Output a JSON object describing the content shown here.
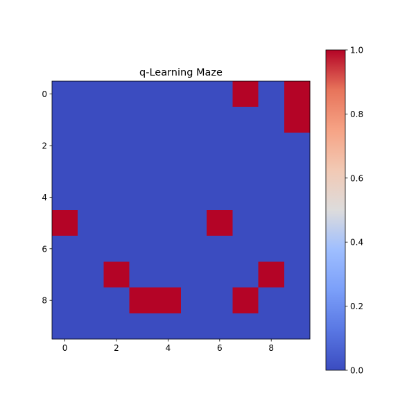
{
  "chart_data": {
    "type": "heatmap",
    "title": "q-Learning Maze",
    "xlabel": "",
    "ylabel": "",
    "colormap": "coolwarm",
    "colors": {
      "low": "#3b4cc0",
      "high": "#b40426"
    },
    "rows": 10,
    "cols": 10,
    "x_ticks": [
      0,
      2,
      4,
      6,
      8
    ],
    "y_ticks": [
      0,
      2,
      4,
      6,
      8
    ],
    "matrix": [
      [
        0,
        0,
        0,
        0,
        0,
        0,
        0,
        1,
        0,
        1
      ],
      [
        0,
        0,
        0,
        0,
        0,
        0,
        0,
        0,
        0,
        1
      ],
      [
        0,
        0,
        0,
        0,
        0,
        0,
        0,
        0,
        0,
        0
      ],
      [
        0,
        0,
        0,
        0,
        0,
        0,
        0,
        0,
        0,
        0
      ],
      [
        0,
        0,
        0,
        0,
        0,
        0,
        0,
        0,
        0,
        0
      ],
      [
        1,
        0,
        0,
        0,
        0,
        0,
        1,
        0,
        0,
        0
      ],
      [
        0,
        0,
        0,
        0,
        0,
        0,
        0,
        0,
        0,
        0
      ],
      [
        0,
        0,
        1,
        0,
        0,
        0,
        0,
        0,
        1,
        0
      ],
      [
        0,
        0,
        0,
        1,
        1,
        0,
        0,
        1,
        0,
        0
      ],
      [
        0,
        0,
        0,
        0,
        0,
        0,
        0,
        0,
        0,
        0
      ]
    ],
    "colorbar": {
      "range": [
        0,
        1
      ],
      "ticks": [
        "0.0",
        "0.2",
        "0.4",
        "0.6",
        "0.8",
        "1.0"
      ]
    },
    "grid": false,
    "legend": "none"
  }
}
